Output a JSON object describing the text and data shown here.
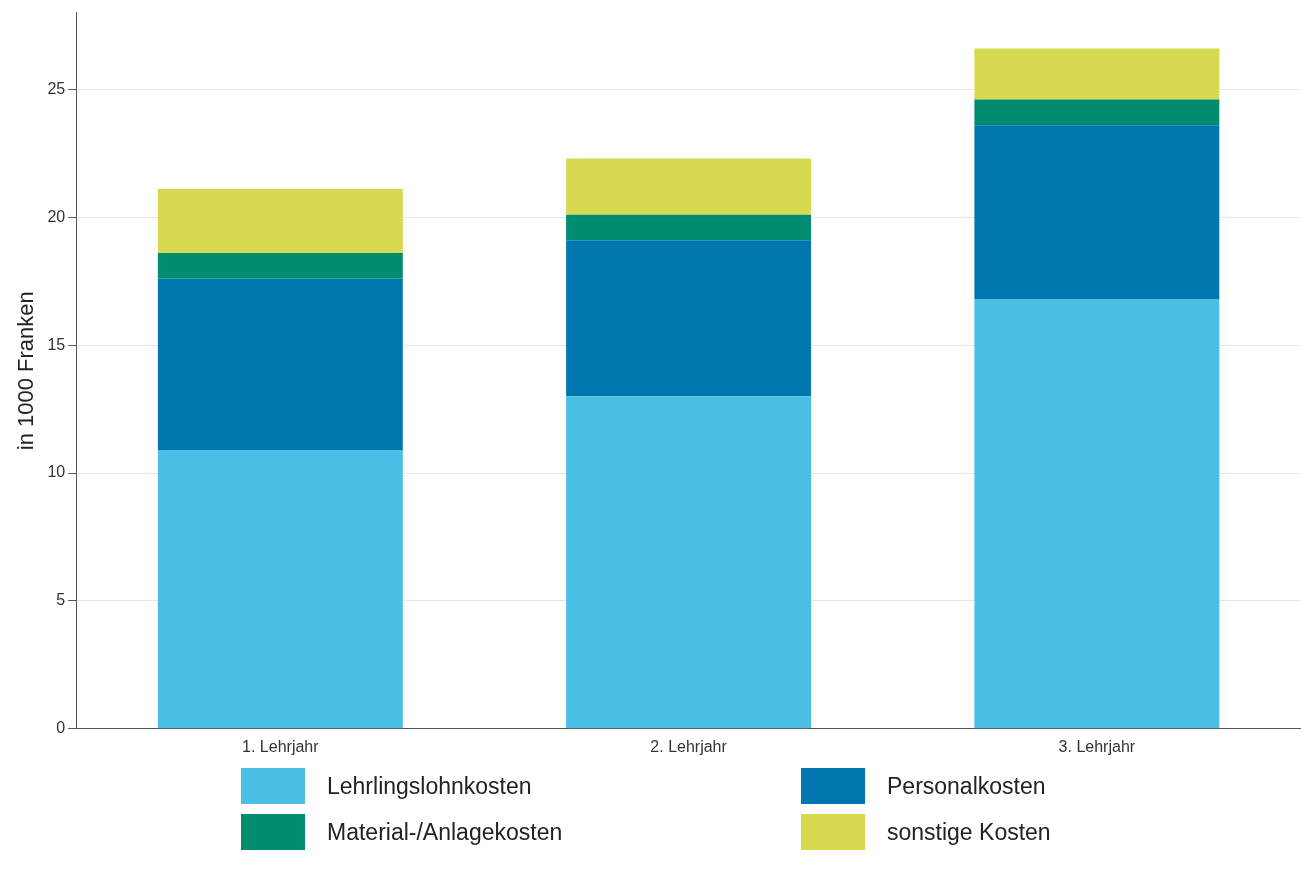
{
  "chart_data": {
    "type": "bar",
    "ylabel": "in 1000 Franken",
    "categories": [
      "1. Lehrjahr",
      "2. Lehrjahr",
      "3. Lehrjahr"
    ],
    "stacked": true,
    "ylim": [
      0,
      28
    ],
    "yticks": [
      0,
      5,
      10,
      15,
      20,
      25
    ],
    "grid": "y",
    "legend": "bottom",
    "series": [
      {
        "name": "Lehrlingslohnkosten",
        "color": "#4bbee6",
        "values": [
          10.9,
          13.0,
          16.8
        ]
      },
      {
        "name": "Personalkosten",
        "color": "#0077ae",
        "values": [
          6.7,
          6.1,
          6.8
        ]
      },
      {
        "name": "Material-/Anlagekosten",
        "color": "#008c6e",
        "values": [
          1.0,
          1.0,
          1.0
        ]
      },
      {
        "name": "sonstige Kosten",
        "color": "#d7da50",
        "values": [
          2.5,
          2.2,
          2.0
        ]
      }
    ]
  }
}
